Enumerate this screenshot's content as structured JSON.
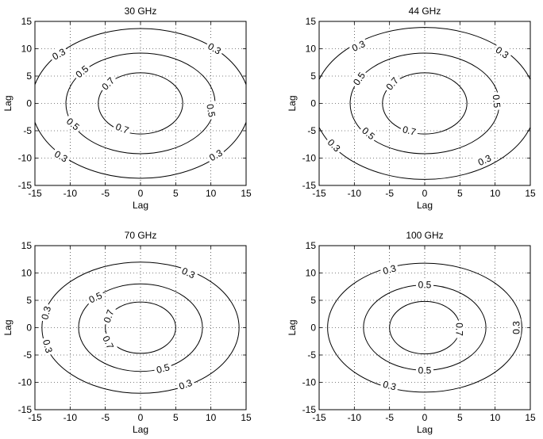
{
  "chart_data": [
    {
      "type": "contour",
      "title": "30 GHz",
      "xlabel": "Lag",
      "ylabel": "Lag",
      "xlim": [
        -15,
        15
      ],
      "ylim": [
        -15,
        15
      ],
      "xticks": [
        "-15",
        "-10",
        "-5",
        "0",
        "5",
        "10",
        "15"
      ],
      "yticks": [
        "15",
        "10",
        "5",
        "0",
        "-5",
        "-10",
        "-15"
      ],
      "grid": true,
      "levels": [
        {
          "value": "0.3",
          "x_semi_axis": 15.5,
          "y_semi_axis": 13.7,
          "labels": [
            {
              "x": -11.6,
              "y": 9.0,
              "angle": -30
            },
            {
              "x": 10.5,
              "y": 10.0,
              "angle": 30
            },
            {
              "x": -11.3,
              "y": -9.7,
              "angle": 30
            },
            {
              "x": 10.7,
              "y": -9.5,
              "angle": -30
            }
          ]
        },
        {
          "value": "0.5",
          "x_semi_axis": 10.6,
          "y_semi_axis": 9.2,
          "labels": [
            {
              "x": -8.3,
              "y": 5.8,
              "angle": -40
            },
            {
              "x": 10.0,
              "y": -1.3,
              "angle": 80
            },
            {
              "x": -9.6,
              "y": -3.8,
              "angle": 40
            }
          ]
        },
        {
          "value": "0.7",
          "x_semi_axis": 6.0,
          "y_semi_axis": 5.6,
          "labels": [
            {
              "x": -4.6,
              "y": 3.6,
              "angle": -45
            },
            {
              "x": -2.6,
              "y": -4.6,
              "angle": 20
            }
          ]
        }
      ]
    },
    {
      "type": "contour",
      "title": "44 GHz",
      "xlabel": "Lag",
      "ylabel": "Lag",
      "xlim": [
        -15,
        15
      ],
      "ylim": [
        -15,
        15
      ],
      "xticks": [
        "-15",
        "-10",
        "-5",
        "0",
        "5",
        "10",
        "15"
      ],
      "yticks": [
        "15",
        "10",
        "5",
        "0",
        "-5",
        "-10",
        "-15"
      ],
      "grid": true,
      "levels": [
        {
          "value": "0.3",
          "x_semi_axis": 15.8,
          "y_semi_axis": 13.9,
          "labels": [
            {
              "x": -9.4,
              "y": 10.5,
              "angle": -25
            },
            {
              "x": 11.0,
              "y": 9.3,
              "angle": 35
            },
            {
              "x": -12.9,
              "y": -7.7,
              "angle": 45
            },
            {
              "x": 8.5,
              "y": -10.4,
              "angle": -25
            }
          ]
        },
        {
          "value": "0.5",
          "x_semi_axis": 10.6,
          "y_semi_axis": 9.2,
          "labels": [
            {
              "x": -9.3,
              "y": 4.5,
              "angle": -55
            },
            {
              "x": 10.2,
              "y": 0.4,
              "angle": 85
            },
            {
              "x": -8.0,
              "y": -5.5,
              "angle": 40
            }
          ]
        },
        {
          "value": "0.7",
          "x_semi_axis": 6.0,
          "y_semi_axis": 5.6,
          "labels": [
            {
              "x": -4.6,
              "y": 3.6,
              "angle": -50
            },
            {
              "x": -2.2,
              "y": -5.0,
              "angle": 15
            }
          ]
        }
      ]
    },
    {
      "type": "contour",
      "title": "70 GHz",
      "xlabel": "Lag",
      "ylabel": "Lag",
      "xlim": [
        -15,
        15
      ],
      "ylim": [
        -15,
        15
      ],
      "xticks": [
        "-15",
        "-10",
        "-5",
        "0",
        "5",
        "10",
        "15"
      ],
      "yticks": [
        "15",
        "10",
        "5",
        "0",
        "-5",
        "-10",
        "-15"
      ],
      "grid": true,
      "levels": [
        {
          "value": "0.3",
          "x_semi_axis": 14.0,
          "y_semi_axis": 12.0,
          "labels": [
            {
              "x": 6.8,
              "y": 10.0,
              "angle": 25
            },
            {
              "x": -13.4,
              "y": 2.7,
              "angle": -75
            },
            {
              "x": -13.2,
              "y": -3.4,
              "angle": 75
            },
            {
              "x": 6.4,
              "y": -10.4,
              "angle": -20
            }
          ]
        },
        {
          "value": "0.5",
          "x_semi_axis": 8.8,
          "y_semi_axis": 8.0,
          "labels": [
            {
              "x": -6.4,
              "y": 5.5,
              "angle": -25
            },
            {
              "x": 3.2,
              "y": -7.5,
              "angle": -15
            }
          ]
        },
        {
          "value": "0.7",
          "x_semi_axis": 5.0,
          "y_semi_axis": 4.7,
          "labels": [
            {
              "x": -4.5,
              "y": 2.1,
              "angle": -70
            },
            {
              "x": -4.6,
              "y": -2.7,
              "angle": 65
            }
          ]
        }
      ]
    },
    {
      "type": "contour",
      "title": "100 GHz",
      "xlabel": "Lag",
      "ylabel": "Lag",
      "xlim": [
        -15,
        15
      ],
      "ylim": [
        -15,
        15
      ],
      "xticks": [
        "-15",
        "-10",
        "-5",
        "0",
        "5",
        "10",
        "15"
      ],
      "yticks": [
        "15",
        "10",
        "5",
        "0",
        "-5",
        "-10",
        "-15"
      ],
      "grid": true,
      "levels": [
        {
          "value": "0.3",
          "x_semi_axis": 13.8,
          "y_semi_axis": 11.8,
          "labels": [
            {
              "x": -5.0,
              "y": 10.6,
              "angle": -15
            },
            {
              "x": 13.0,
              "y": 0.0,
              "angle": -90
            },
            {
              "x": -5.0,
              "y": -10.6,
              "angle": 15
            }
          ]
        },
        {
          "value": "0.5",
          "x_semi_axis": 8.7,
          "y_semi_axis": 7.8,
          "labels": [
            {
              "x": 0.0,
              "y": 7.8,
              "angle": 0
            },
            {
              "x": 0.0,
              "y": -7.8,
              "angle": 0
            }
          ]
        },
        {
          "value": "0.7",
          "x_semi_axis": 5.0,
          "y_semi_axis": 4.8,
          "labels": [
            {
              "x": 4.9,
              "y": -0.3,
              "angle": 90
            }
          ]
        }
      ]
    }
  ]
}
